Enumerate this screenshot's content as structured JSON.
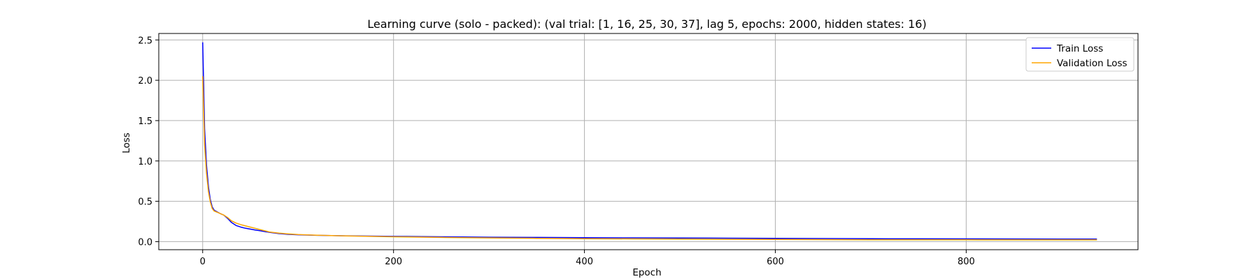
{
  "chart_data": {
    "type": "line",
    "title": "Learning curve (solo - packed): (val trial: [1, 16, 25, 30, 37], lag 5, epochs: 2000, hidden states: 16)",
    "xlabel": "Epoch",
    "ylabel": "Loss",
    "xlim": [
      -46,
      980
    ],
    "ylim": [
      -0.1,
      2.58
    ],
    "x_ticks": [
      0,
      200,
      400,
      600,
      800
    ],
    "y_ticks": [
      0.0,
      0.5,
      1.0,
      1.5,
      2.0,
      2.5
    ],
    "x_tick_labels": [
      "0",
      "200",
      "400",
      "600",
      "800"
    ],
    "y_tick_labels": [
      "0.0",
      "0.5",
      "1.0",
      "1.5",
      "2.0",
      "2.5"
    ],
    "grid": true,
    "legend_position": "top-right",
    "series": [
      {
        "name": "Train Loss",
        "color": "#0000ff",
        "x": [
          0,
          2,
          4,
          6,
          8,
          10,
          12,
          15,
          18,
          22,
          26,
          30,
          35,
          40,
          45,
          50,
          55,
          60,
          65,
          70,
          80,
          90,
          100,
          120,
          150,
          200,
          250,
          300,
          350,
          400,
          450,
          500,
          550,
          600,
          650,
          700,
          750,
          800,
          850,
          900,
          937
        ],
        "y": [
          2.47,
          1.4,
          0.95,
          0.68,
          0.52,
          0.43,
          0.39,
          0.37,
          0.35,
          0.33,
          0.29,
          0.24,
          0.2,
          0.18,
          0.165,
          0.155,
          0.145,
          0.135,
          0.125,
          0.115,
          0.1,
          0.09,
          0.085,
          0.078,
          0.072,
          0.065,
          0.06,
          0.055,
          0.052,
          0.049,
          0.047,
          0.045,
          0.043,
          0.04,
          0.038,
          0.036,
          0.035,
          0.034,
          0.033,
          0.032,
          0.031
        ]
      },
      {
        "name": "Validation Loss",
        "color": "#ffa500",
        "x": [
          0,
          2,
          4,
          6,
          8,
          10,
          12,
          15,
          18,
          22,
          26,
          30,
          35,
          40,
          45,
          50,
          55,
          60,
          65,
          70,
          80,
          90,
          100,
          120,
          150,
          200,
          250,
          300,
          350,
          400,
          450,
          500,
          550,
          600,
          650,
          700,
          750,
          800,
          850,
          900,
          937
        ],
        "y": [
          2.05,
          1.2,
          0.85,
          0.62,
          0.49,
          0.41,
          0.38,
          0.365,
          0.35,
          0.33,
          0.3,
          0.26,
          0.23,
          0.21,
          0.195,
          0.18,
          0.165,
          0.15,
          0.135,
          0.12,
          0.105,
          0.095,
          0.088,
          0.079,
          0.07,
          0.06,
          0.052,
          0.046,
          0.041,
          0.037,
          0.034,
          0.031,
          0.029,
          0.027,
          0.025,
          0.024,
          0.023,
          0.023,
          0.022,
          0.022,
          0.022
        ]
      }
    ]
  }
}
